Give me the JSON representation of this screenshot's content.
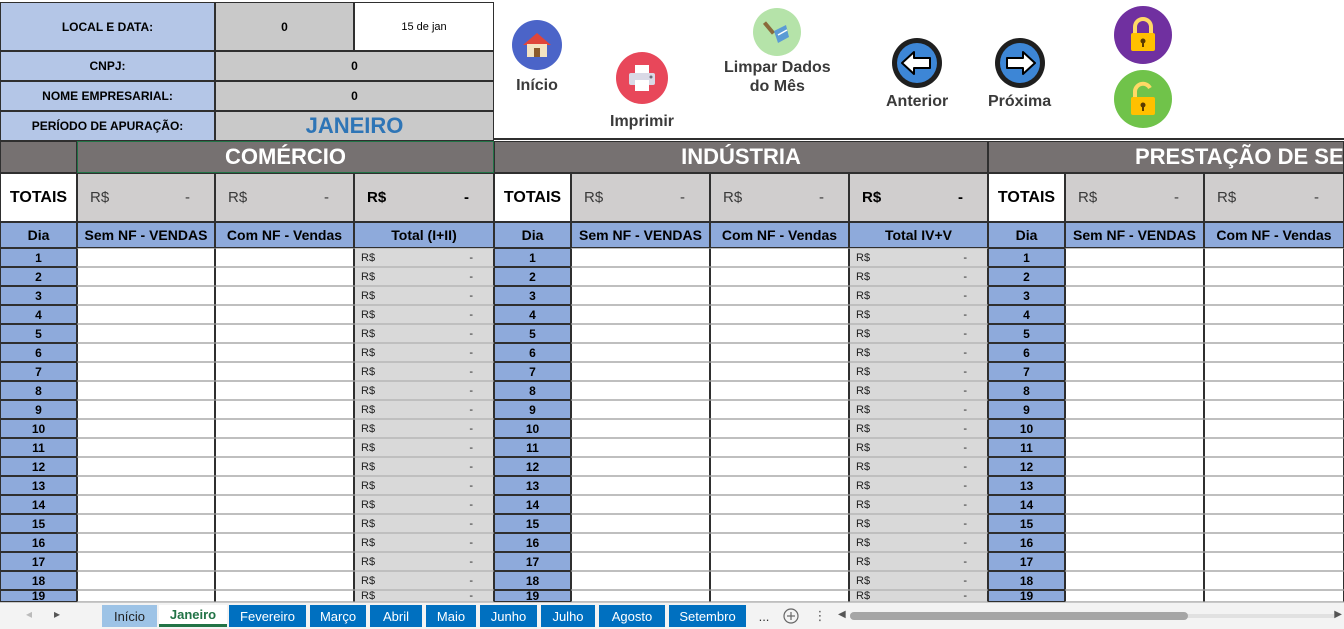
{
  "info": {
    "local_label": "LOCAL E DATA:",
    "local_value": "0",
    "date_value": "15 de jan",
    "cnpj_label": "CNPJ:",
    "cnpj_value": "0",
    "nome_label": "NOME EMPRESARIAL:",
    "nome_value": "0",
    "periodo_label": "PERÍODO DE APURAÇÃO:",
    "periodo_value": "JANEIRO"
  },
  "toolbar": {
    "inicio": "Início",
    "imprimir": "Imprimir",
    "limpar": "Limpar Dados\ndo Mês",
    "anterior": "Anterior",
    "proxima": "Próxima"
  },
  "sections": {
    "comercio": "COMÉRCIO",
    "industria": "INDÚSTRIA",
    "prestacao": "PRESTAÇÃO DE SER"
  },
  "totais": {
    "label": "TOTAIS",
    "currency": "R$",
    "dash": "-"
  },
  "columns": {
    "dia": "Dia",
    "sem_nf": "Sem NF - VENDAS",
    "com_nf": "Com NF - Vendas",
    "total_com": "Total (I+II)",
    "total_ind": "Total IV+V"
  },
  "days": [
    "1",
    "2",
    "3",
    "4",
    "5",
    "6",
    "7",
    "8",
    "9",
    "10",
    "11",
    "12",
    "13",
    "14",
    "15",
    "16",
    "17",
    "18",
    "19"
  ],
  "money_cell": {
    "currency": "R$",
    "value": "-"
  },
  "tabs": [
    "Início",
    "Janeiro",
    "Fevereiro",
    "Março",
    "Abril",
    "Maio",
    "Junho",
    "Julho",
    "Agosto",
    "Setembro"
  ],
  "active_tab": "Janeiro",
  "more_tabs": "...",
  "colors": {
    "label_blue": "#b4c6e7",
    "column_blue": "#8eaadb",
    "section_gray": "#767171",
    "tab_blue": "#0070c0",
    "excel_green": "#217346"
  }
}
